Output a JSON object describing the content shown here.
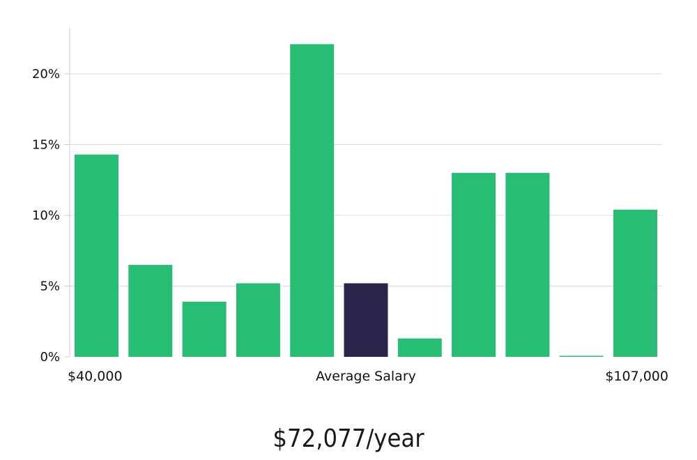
{
  "chart_data": {
    "type": "bar",
    "values": [
      14.3,
      6.5,
      3.9,
      5.2,
      22.1,
      5.2,
      1.3,
      13.0,
      13.0,
      0.0,
      10.4
    ],
    "highlight_index": 5,
    "yticks": [
      "0%",
      "5%",
      "10%",
      "15%",
      "20%"
    ],
    "ylim": [
      0,
      23
    ],
    "grid": true,
    "x_labels": {
      "left": "$40,000",
      "center": "Average Salary",
      "right": "$107,000"
    },
    "colors": {
      "bar": "#27bd74",
      "highlight": "#28244a",
      "grid": "#dcdcdc",
      "axis": "#cccccc"
    }
  },
  "summary": {
    "salary_text": "$72,077/year"
  }
}
